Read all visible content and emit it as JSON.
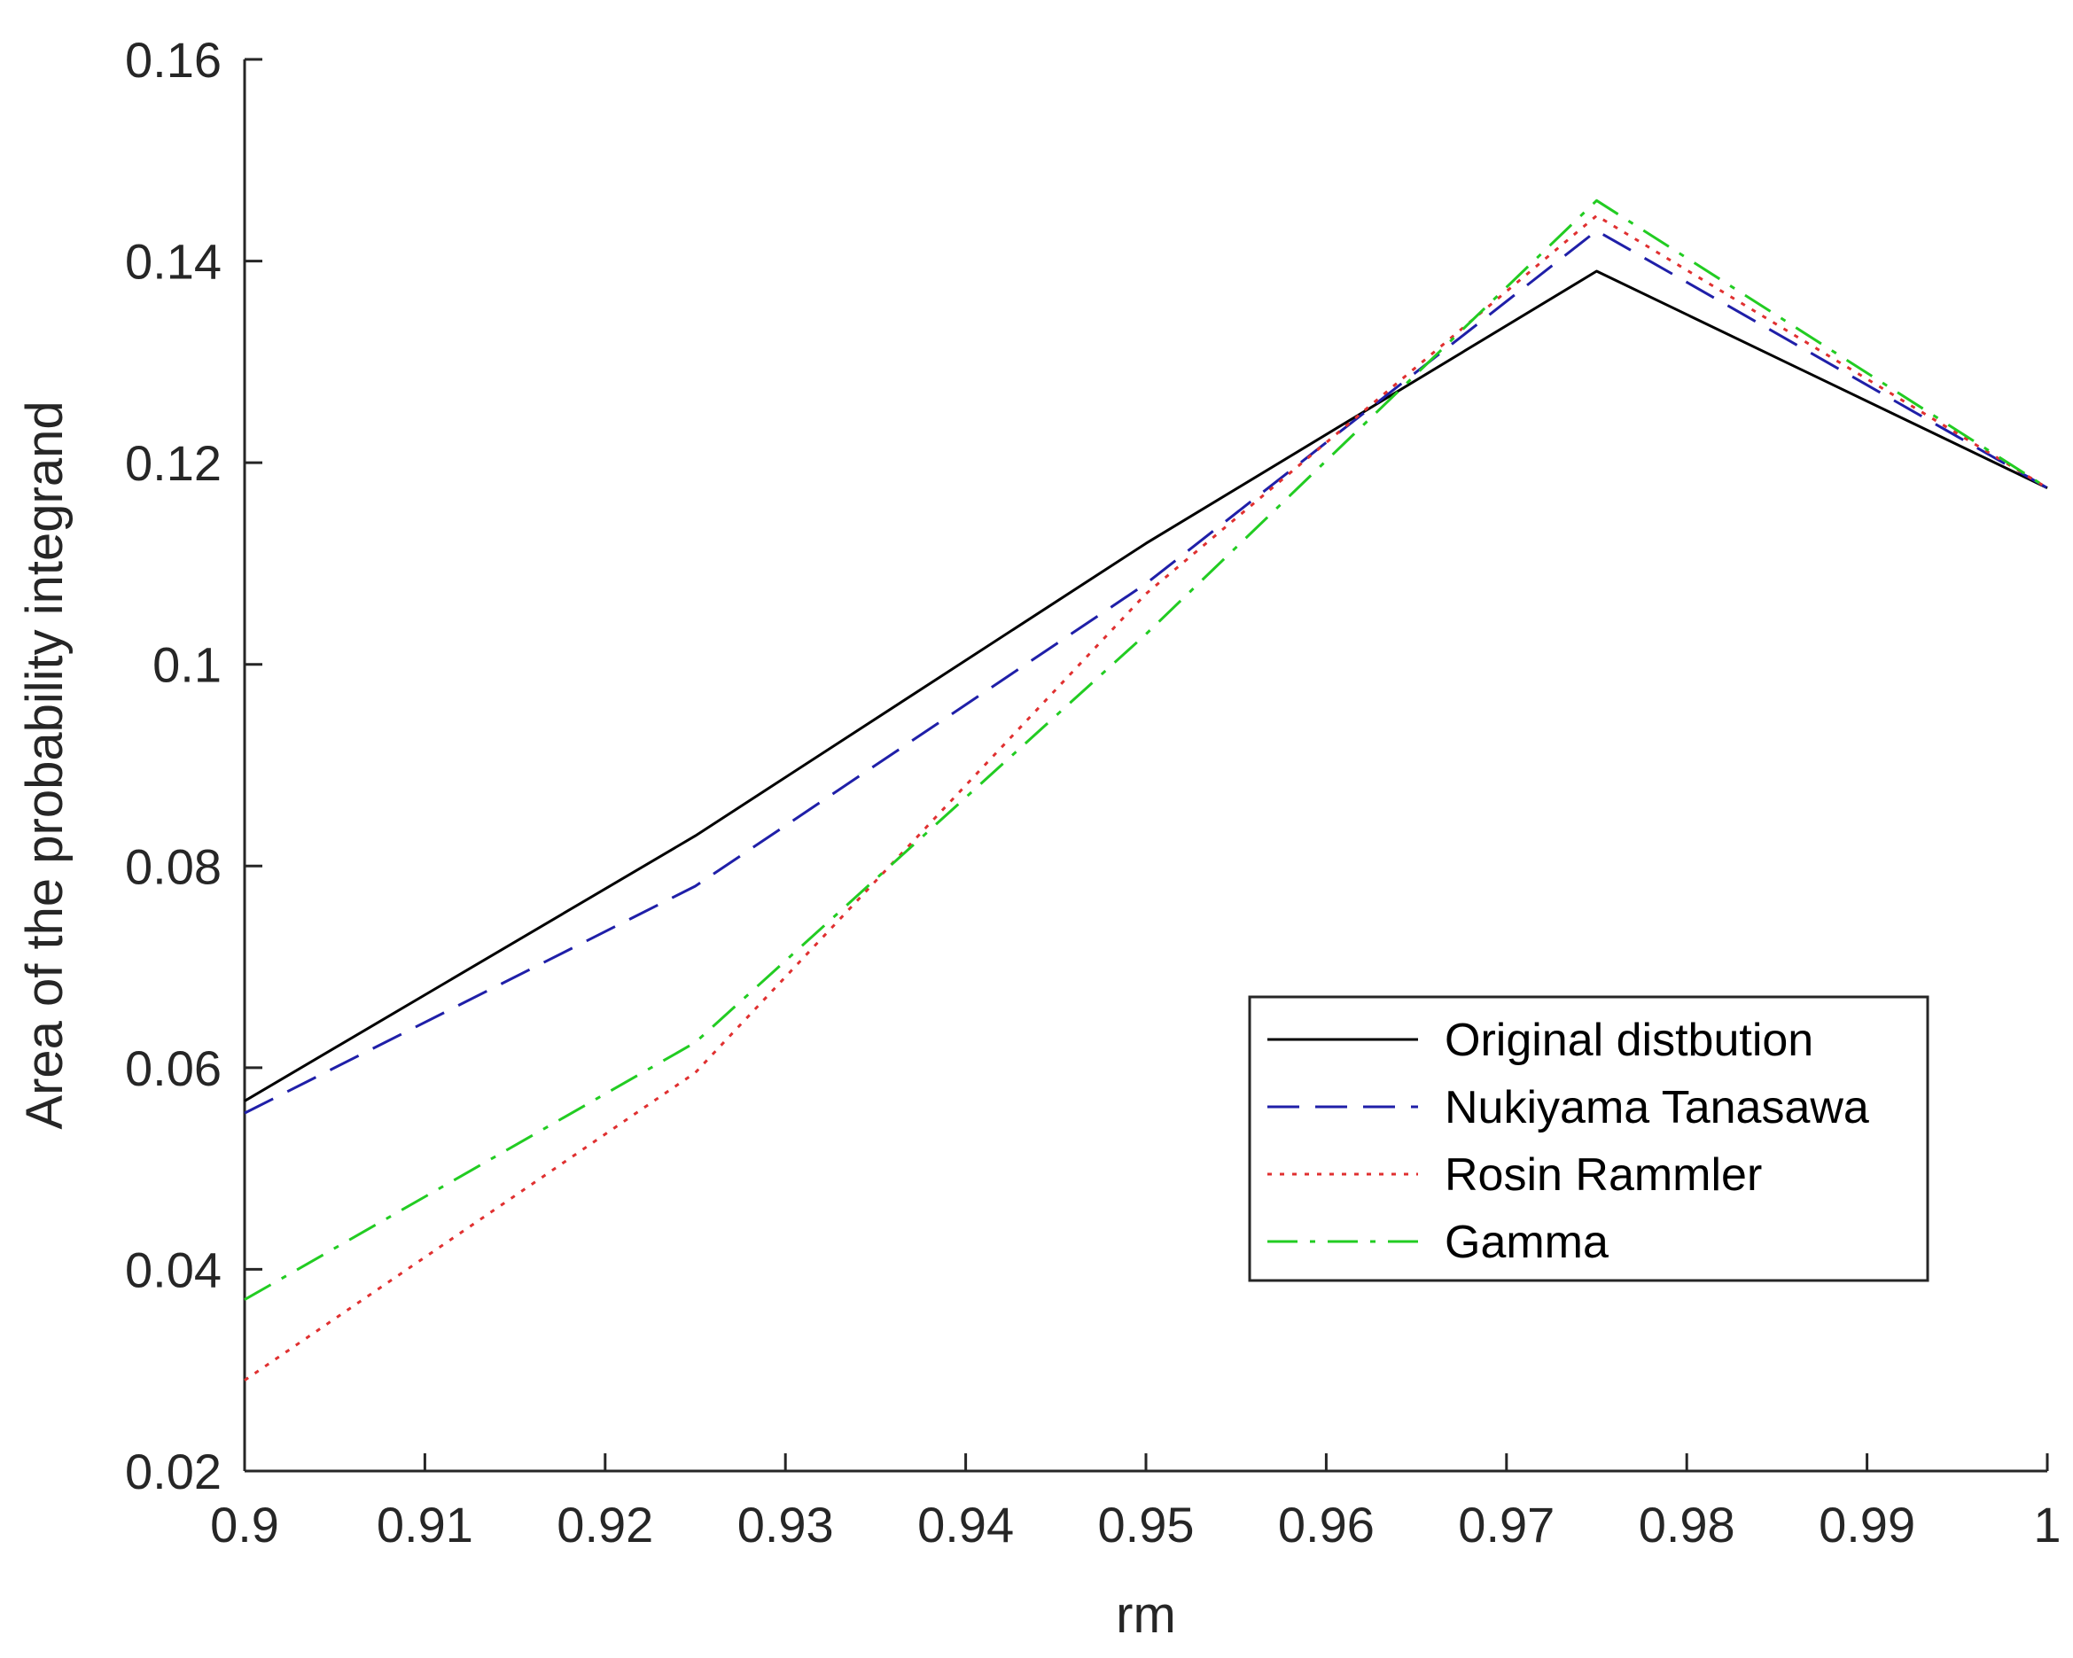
{
  "chart_data": {
    "type": "line",
    "title": "",
    "xlabel": "rm",
    "ylabel": "Area of the probability integrand",
    "xlim": [
      0.9,
      1.0
    ],
    "ylim": [
      0.02,
      0.16
    ],
    "xticks": [
      "0.9",
      "0.91",
      "0.92",
      "0.93",
      "0.94",
      "0.95",
      "0.96",
      "0.97",
      "0.98",
      "0.99",
      "1"
    ],
    "yticks": [
      "0.02",
      "0.04",
      "0.06",
      "0.08",
      "0.1",
      "0.12",
      "0.14",
      "0.16"
    ],
    "grid": false,
    "legend_position": "lower-right",
    "x": [
      0.9,
      0.925,
      0.95,
      0.975,
      1.0
    ],
    "series": [
      {
        "name": "Original distbution",
        "values": [
          0.0567,
          0.083,
          0.112,
          0.139,
          0.1175
        ],
        "color": "#000000",
        "style": "solid"
      },
      {
        "name": "Nukiyama Tanasawa",
        "values": [
          0.0555,
          0.078,
          0.108,
          0.143,
          0.1175
        ],
        "color": "#1f1fa8",
        "style": "dashed"
      },
      {
        "name": "Rosin Rammler",
        "values": [
          0.029,
          0.0595,
          0.107,
          0.1445,
          0.1175
        ],
        "color": "#e03030",
        "style": "dotted"
      },
      {
        "name": "Gamma",
        "values": [
          0.037,
          0.0625,
          0.103,
          0.146,
          0.1175
        ],
        "color": "#22cc22",
        "style": "dashdot"
      }
    ]
  }
}
